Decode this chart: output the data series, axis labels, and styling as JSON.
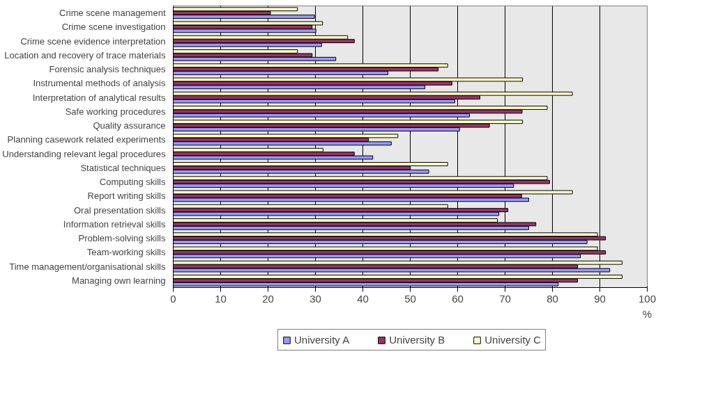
{
  "chart_data": {
    "type": "bar",
    "orientation": "horizontal",
    "xlabel": "%",
    "categories": [
      "Crime scene management",
      "Crime scene investigation",
      "Crime scene evidence interpretation",
      "Location and recovery of trace materials",
      "Forensic analysis techniques",
      "Instrumental methods of analysis",
      "Interpretation of analytical results",
      "Safe working procedures",
      "Quality assurance",
      "Planning casework related experiments",
      "Understanding relevant legal procedures",
      "Statistical techniques",
      "Computing skills",
      "Report writing skills",
      "Oral presentation skills",
      "Information retrieval skills",
      "Problem-solving skills",
      "Team-working skills",
      "Time management/organisational skills",
      "Managing own learning"
    ],
    "series": [
      {
        "name": "University A",
        "color": "#9999ff",
        "values": [
          29.8,
          30.1,
          31.3,
          34.3,
          45.3,
          53.1,
          59.4,
          62.5,
          60.4,
          46.0,
          42.1,
          53.9,
          71.8,
          75.0,
          68.7,
          75.0,
          87.3,
          85.9,
          92.1,
          81.2
        ]
      },
      {
        "name": "University B",
        "color": "#993366",
        "values": [
          20.5,
          29.3,
          38.2,
          29.3,
          55.9,
          58.8,
          64.7,
          73.6,
          66.7,
          41.2,
          38.2,
          50.0,
          79.4,
          73.5,
          70.6,
          76.5,
          91.2,
          91.2,
          85.3,
          85.3
        ]
      },
      {
        "name": "University C",
        "color": "#ffffcc",
        "values": [
          26.2,
          31.5,
          36.8,
          26.2,
          57.9,
          73.7,
          84.2,
          78.9,
          73.7,
          47.4,
          31.6,
          57.9,
          78.9,
          84.2,
          57.9,
          68.4,
          89.5,
          89.5,
          94.7,
          94.7
        ]
      }
    ],
    "xlim": [
      0,
      100
    ],
    "xticks": [
      0,
      10,
      20,
      30,
      40,
      50,
      60,
      70,
      80,
      90,
      100
    ],
    "grid": "x",
    "legend": "bottom"
  }
}
